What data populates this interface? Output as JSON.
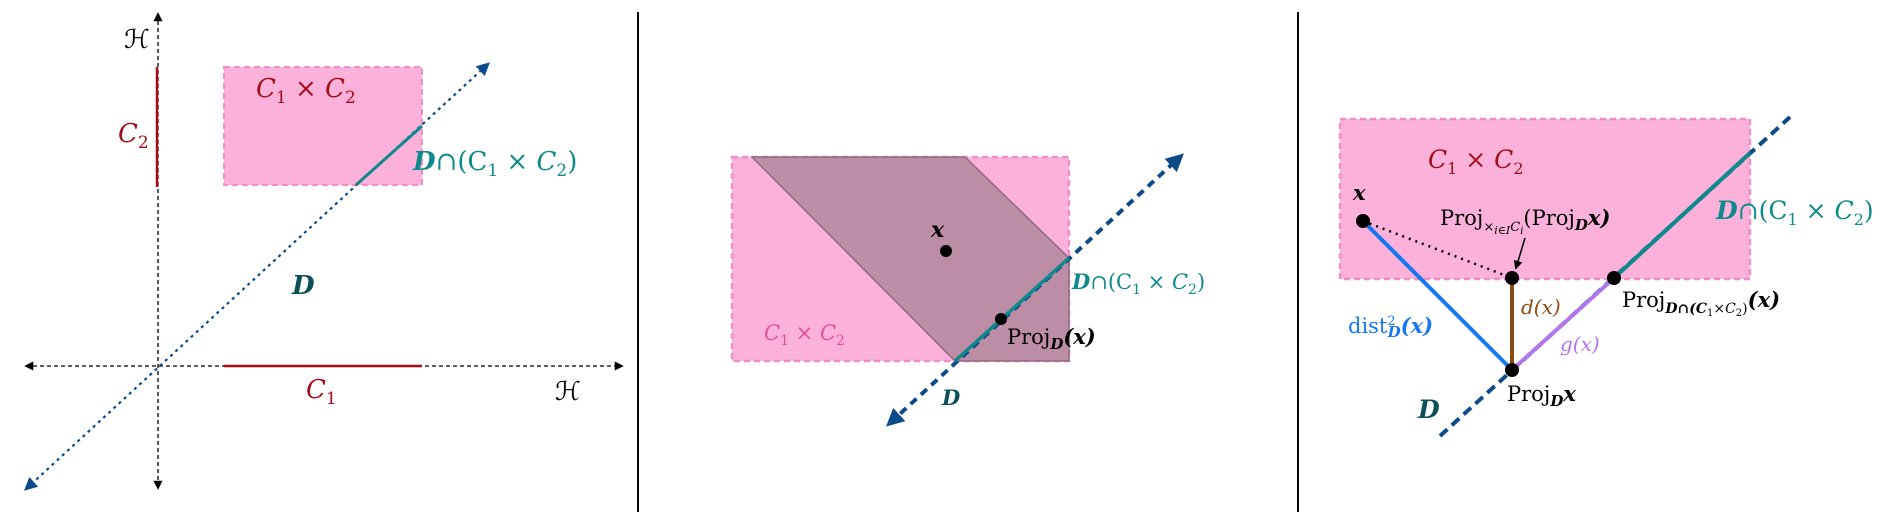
{
  "colors": {
    "pink_fill": "#fbb1da",
    "pink_edge": "#f08fc7",
    "mauve": "#bd8ca5",
    "red": "#a30d1b",
    "teal": "#0f8a8a",
    "dark_teal": "#0b5058",
    "navy": "#0d4a8a",
    "blue": "#1877f2",
    "brown": "#8b4a0f",
    "purple": "#b077ea",
    "black": "#000000"
  },
  "panel1": {
    "h_top": "ℋ",
    "h_right": "ℋ",
    "c1": "C",
    "c1_sub": "1",
    "c2": "C",
    "c2_sub": "2",
    "prod_a": "C",
    "prod_a_sub": "1",
    "prod_times": " × C",
    "prod_b_sub": "2",
    "d": "D",
    "inter_d": "D",
    "inter_rest": "∩(C",
    "inter_sub1": "1",
    "inter_times": " × C",
    "inter_sub2": "2",
    "inter_close": ")"
  },
  "panel2": {
    "x": "x",
    "prod_a": "C",
    "prod_a_sub": "1",
    "prod_times": " × C",
    "prod_b_sub": "2",
    "d": "D",
    "inter_d": "D",
    "inter_rest": "∩(C",
    "inter_sub1": "1",
    "inter_times": " × C",
    "inter_sub2": "2",
    "inter_close": ")",
    "proj": "Proj",
    "proj_sub": "D",
    "proj_arg": "(x)"
  },
  "panel3": {
    "x": "x",
    "prod_a": "C",
    "prod_a_sub": "1",
    "prod_times": " × C",
    "prod_b_sub": "2",
    "d": "D",
    "inter_d": "D",
    "inter_rest": "∩(C",
    "inter_sub1": "1",
    "inter_times": " × C",
    "inter_sub2": "2",
    "inter_close": ")",
    "proj_top": "Proj",
    "proj_top_sub": "×",
    "proj_top_sub2": "i∈I",
    "proj_top_sub3": "C",
    "proj_top_sub4": "i",
    "proj_top_open": "(Proj",
    "proj_top_inner_sub": "D",
    "proj_top_inner_arg": "x)",
    "d_of_x": "d(x)",
    "g_of_x": "g(x)",
    "dist": "dist",
    "dist_sup": "2",
    "dist_sub": "D",
    "dist_arg": "(x)",
    "proj_inter": "Proj",
    "proj_inter_sub": "D∩(C",
    "proj_inter_sub_a": "1",
    "proj_inter_sub_times": "×C",
    "proj_inter_sub_b": "2",
    "proj_inter_sub_close": ")",
    "proj_inter_arg": "(x)",
    "proj_bottom": "Proj",
    "proj_bottom_sub": "D",
    "proj_bottom_arg": "x"
  }
}
